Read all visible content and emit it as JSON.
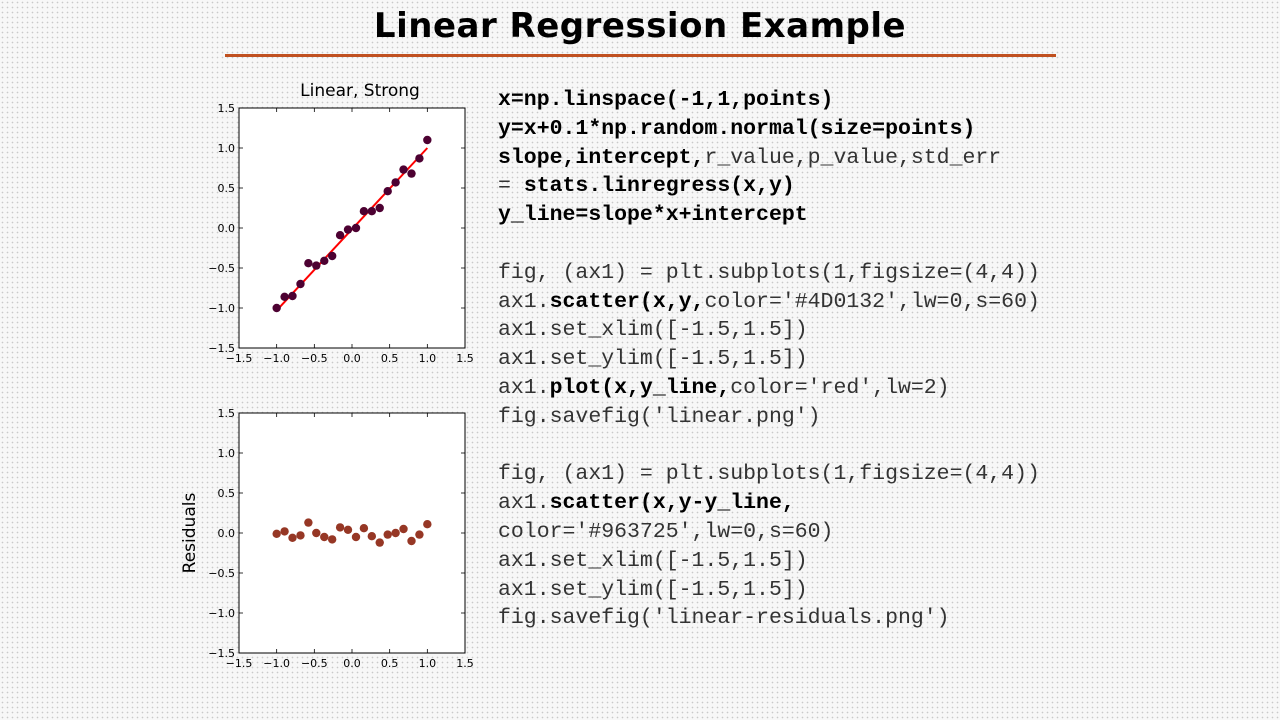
{
  "slide": {
    "title": "Linear Regression Example"
  },
  "colors": {
    "accent_rule": "#c0501f",
    "scatter_top": "#4D0132",
    "scatter_bottom": "#963725",
    "fit_line": "red"
  },
  "chart_data": [
    {
      "type": "scatter",
      "title": "Linear, Strong",
      "xlabel": "",
      "ylabel": "",
      "xlim": [
        -1.5,
        1.5
      ],
      "ylim": [
        -1.5,
        1.5
      ],
      "xticks": [
        "−1.5",
        "−1.0",
        "−0.5",
        "0.0",
        "0.5",
        "1.0",
        "1.5"
      ],
      "yticks": [
        "1.5",
        "1.0",
        "0.5",
        "0.0",
        "−0.5",
        "−1.0",
        "−1.5"
      ],
      "grid": false,
      "series": [
        {
          "x": [
            -1.0,
            -0.895,
            -0.79,
            -0.684,
            -0.579,
            -0.474,
            -0.368,
            -0.263,
            -0.158,
            -0.053,
            0.053,
            0.158,
            0.263,
            0.368,
            0.474,
            0.579,
            0.684,
            0.79,
            0.895,
            1.0
          ],
          "y": [
            -1.0,
            -0.86,
            -0.85,
            -0.7,
            -0.44,
            -0.47,
            -0.41,
            -0.35,
            -0.09,
            -0.02,
            0.0,
            0.21,
            0.21,
            0.25,
            0.46,
            0.57,
            0.73,
            0.68,
            0.87,
            1.1
          ]
        }
      ],
      "fit_line": {
        "x": [
          -1.0,
          1.0
        ],
        "y": [
          -1.03,
          1.0
        ]
      }
    },
    {
      "type": "scatter",
      "title": "",
      "xlabel": "",
      "ylabel": "Residuals",
      "xlim": [
        -1.5,
        1.5
      ],
      "ylim": [
        -1.5,
        1.5
      ],
      "xticks": [
        "−1.5",
        "−1.0",
        "−0.5",
        "0.0",
        "0.5",
        "1.0",
        "1.5"
      ],
      "yticks": [
        "1.5",
        "1.0",
        "0.5",
        "0.0",
        "−0.5",
        "−1.0",
        "−1.5"
      ],
      "grid": false,
      "series": [
        {
          "x": [
            -1.0,
            -0.895,
            -0.79,
            -0.684,
            -0.579,
            -0.474,
            -0.368,
            -0.263,
            -0.158,
            -0.053,
            0.053,
            0.158,
            0.263,
            0.368,
            0.474,
            0.579,
            0.684,
            0.79,
            0.895,
            1.0
          ],
          "y": [
            -0.01,
            0.02,
            -0.06,
            -0.03,
            0.13,
            0.0,
            -0.05,
            -0.08,
            0.07,
            0.04,
            -0.05,
            0.06,
            -0.04,
            -0.12,
            -0.02,
            0.0,
            0.05,
            -0.1,
            -0.02,
            0.11
          ]
        }
      ]
    }
  ],
  "code": {
    "l1": "x=np.linspace(-1,1,points)",
    "l2": "y=x+0.1*np.random.normal(size=points)",
    "l3a": "slope,intercept,",
    "l3b": "r_value,p_value,std_err",
    "l4a": "= ",
    "l4b": "stats.linregress(x,y)",
    "l5": "y_line=slope*x+intercept",
    "l6": "fig, (ax1) = plt.subplots(1,figsize=(4,4))",
    "l7a": "ax1.",
    "l7b": "scatter(x,y,",
    "l7c": "color='#4D0132',lw=0,s=60)",
    "l8": "ax1.set_xlim([-1.5,1.5])",
    "l9": "ax1.set_ylim([-1.5,1.5])",
    "l10a": "ax1.",
    "l10b": "plot(x,y_line,",
    "l10c": "color='red',lw=2)",
    "l11": "fig.savefig('linear.png')",
    "l12": "fig, (ax1) = plt.subplots(1,figsize=(4,4))",
    "l13a": "ax1.",
    "l13b": "scatter(x,y-y_line,",
    "l14": "color='#963725',lw=0,s=60)",
    "l15": "ax1.set_xlim([-1.5,1.5])",
    "l16": "ax1.set_ylim([-1.5,1.5])",
    "l17": "fig.savefig('linear-residuals.png')"
  }
}
